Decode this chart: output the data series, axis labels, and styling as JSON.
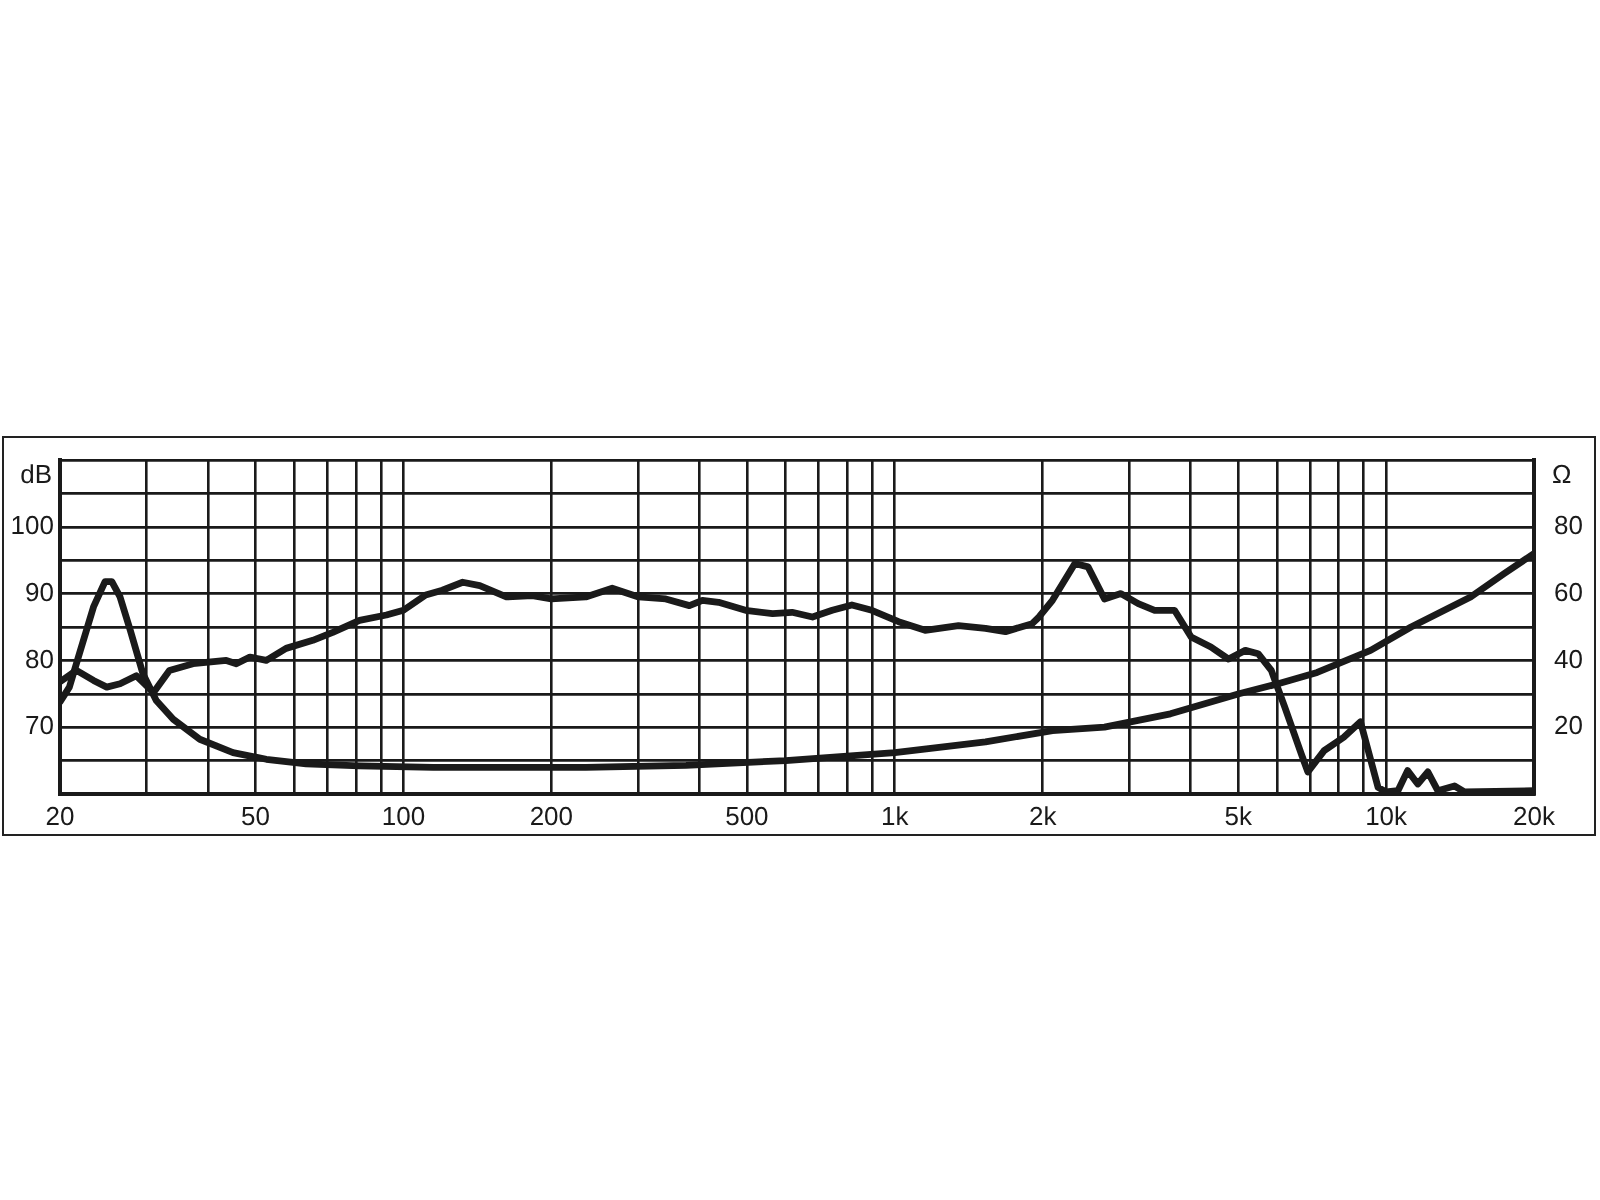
{
  "chart_data": {
    "type": "line",
    "ylabel": "dB",
    "y2label": "Ω",
    "log": "x",
    "grid": true,
    "legend": false,
    "marker": "none",
    "line_style": "solid",
    "xlim": [
      20,
      20000
    ],
    "xticks": [
      20,
      {
        "value": 30,
        "label": null
      },
      {
        "value": 40,
        "label": null
      },
      50,
      {
        "value": 60,
        "label": null
      },
      {
        "value": 70,
        "label": null
      },
      {
        "value": 80,
        "label": null
      },
      {
        "value": 90,
        "label": null
      },
      100,
      200,
      {
        "value": 300,
        "label": null
      },
      {
        "value": 400,
        "label": null
      },
      500,
      {
        "value": 600,
        "label": null
      },
      {
        "value": 700,
        "label": null
      },
      {
        "value": 800,
        "label": null
      },
      {
        "value": 900,
        "label": null
      },
      {
        "value": 1000,
        "label": "1k"
      },
      {
        "value": 2000,
        "label": "2k"
      },
      {
        "value": 3000,
        "label": null
      },
      {
        "value": 4000,
        "label": null
      },
      {
        "value": 5000,
        "label": "5k"
      },
      {
        "value": 6000,
        "label": null
      },
      {
        "value": 7000,
        "label": null
      },
      {
        "value": 8000,
        "label": null
      },
      {
        "value": 9000,
        "label": null
      },
      {
        "value": 10000,
        "label": "10k"
      },
      {
        "value": 20000,
        "label": "20k"
      }
    ],
    "ylim": [
      60,
      110
    ],
    "yticks": [
      {
        "value": 60,
        "label": null
      },
      {
        "value": 65,
        "label": null
      },
      70,
      {
        "value": 75,
        "label": null
      },
      80,
      {
        "value": 85,
        "label": null
      },
      90,
      {
        "value": 95,
        "label": null
      },
      100,
      {
        "value": 105,
        "label": null
      },
      {
        "value": 110,
        "label": null
      }
    ],
    "y2lim": [
      0,
      100
    ],
    "y2ticks": [
      {
        "value": 0,
        "label": null
      },
      {
        "value": 10,
        "label": null
      },
      20,
      {
        "value": 30,
        "label": null
      },
      40,
      {
        "value": 50,
        "label": null
      },
      60,
      {
        "value": 70,
        "label": null
      },
      80,
      {
        "value": 90,
        "label": null
      },
      {
        "value": 100,
        "label": null
      }
    ],
    "series": [
      {
        "color": "#1a1a1a",
        "axis": "y",
        "x": [
          20,
          21.6,
          23.4,
          24.9,
          26.5,
          28.6,
          31,
          33.4,
          37.3,
          43.6,
          45.7,
          48.7,
          52.6,
          57.7,
          65.4,
          71.8,
          81.4,
          92.3,
          100,
          111,
          120,
          132,
          143,
          162,
          183,
          200,
          235,
          266,
          301,
          342,
          382,
          406,
          438,
          497,
          564,
          618,
          680,
          746,
          818,
          898,
          1018,
          1153,
          1348,
          1530,
          1680,
          1904,
          1966,
          2094,
          2326,
          2474,
          2672,
          2886,
          3130,
          3380,
          3710,
          4010,
          4400,
          4780,
          5170,
          5490,
          5840,
          6220,
          6720,
          6930,
          7480,
          8200,
          8870,
          9630,
          10000,
          10570,
          11060,
          11600,
          12160,
          12740,
          13780,
          14440,
          20000
        ],
        "values": [
          76.8,
          78.5,
          77,
          76,
          76.5,
          77.7,
          75.2,
          78.5,
          79.5,
          80,
          79.5,
          80.5,
          80,
          81.8,
          83,
          84.2,
          86,
          86.8,
          87.5,
          89.8,
          90.5,
          91.7,
          91.2,
          89.5,
          89.7,
          89.2,
          89.5,
          90.8,
          89.5,
          89.2,
          88.2,
          89,
          88.7,
          87.5,
          87,
          87.2,
          86.5,
          87.5,
          88.3,
          87.5,
          85.8,
          84.5,
          85.2,
          84.8,
          84.3,
          85.5,
          86.5,
          89,
          94.5,
          94,
          89.2,
          90,
          88.5,
          87.5,
          87.5,
          83.5,
          82,
          80.2,
          81.5,
          81,
          78.5,
          73,
          66,
          63.3,
          66.5,
          68.5,
          70.8,
          61,
          60.3,
          60.5,
          63.5,
          61.5,
          63.3,
          60.5,
          61.2,
          60.3,
          60.5
        ]
      },
      {
        "color": "#1a1a1a",
        "axis": "y2",
        "x": [
          20,
          20.9,
          21.9,
          23.4,
          24.7,
          25.5,
          26.5,
          27.8,
          29.5,
          31.4,
          34,
          38.5,
          45,
          52.6,
          63.4,
          81.4,
          115,
          183,
          235,
          376,
          600,
          1000,
          1530,
          2094,
          2672,
          3640,
          5020,
          6030,
          7240,
          9300,
          11240,
          14860,
          17400,
          20000
        ],
        "values": [
          27.6,
          32,
          42,
          56,
          63.6,
          63.6,
          59,
          49,
          36,
          28,
          22.4,
          16.4,
          12.4,
          10.4,
          9,
          8.4,
          8,
          8,
          8,
          8.6,
          10,
          12.4,
          15.6,
          19,
          20,
          24,
          30,
          33,
          36.4,
          43,
          50,
          59,
          66,
          72
        ]
      }
    ]
  }
}
